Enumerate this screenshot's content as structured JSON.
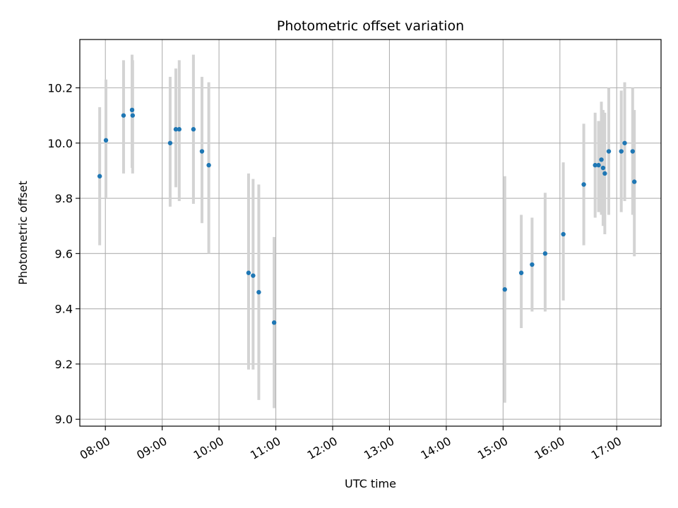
{
  "chart_data": {
    "type": "scatter",
    "title": "Photometric offset variation",
    "xlabel": "UTC time",
    "ylabel": "Photometric offset",
    "x_unit": "UTC time (decimal hours)",
    "xlim": [
      7.55,
      17.78
    ],
    "ylim": [
      8.975,
      10.375
    ],
    "x_ticks": [
      8,
      9,
      10,
      11,
      12,
      13,
      14,
      15,
      16,
      17
    ],
    "x_tick_labels": [
      "08:00",
      "09:00",
      "10:00",
      "11:00",
      "12:00",
      "13:00",
      "14:00",
      "15:00",
      "16:00",
      "17:00"
    ],
    "y_ticks": [
      9.0,
      9.2,
      9.4,
      9.6,
      9.8,
      10.0,
      10.2
    ],
    "y_tick_labels": [
      "9.0",
      "9.2",
      "9.4",
      "9.6",
      "9.8",
      "10.0",
      "10.2"
    ],
    "grid": true,
    "colors": {
      "points": "#1f77b4",
      "errorbars": "#d3d3d3",
      "grid": "#b0b0b0"
    },
    "points": [
      {
        "x": 7.9,
        "y": 9.88,
        "lo": 9.63,
        "hi": 10.13
      },
      {
        "x": 8.01,
        "y": 10.01,
        "lo": 9.8,
        "hi": 10.23
      },
      {
        "x": 8.32,
        "y": 10.1,
        "lo": 9.89,
        "hi": 10.3
      },
      {
        "x": 8.47,
        "y": 10.12,
        "lo": 9.91,
        "hi": 10.32
      },
      {
        "x": 8.48,
        "y": 10.1,
        "lo": 9.89,
        "hi": 10.3
      },
      {
        "x": 9.14,
        "y": 10.0,
        "lo": 9.77,
        "hi": 10.24
      },
      {
        "x": 9.24,
        "y": 10.05,
        "lo": 9.84,
        "hi": 10.27
      },
      {
        "x": 9.3,
        "y": 10.05,
        "lo": 9.79,
        "hi": 10.3
      },
      {
        "x": 9.55,
        "y": 10.05,
        "lo": 9.78,
        "hi": 10.32
      },
      {
        "x": 9.7,
        "y": 9.97,
        "lo": 9.71,
        "hi": 10.24
      },
      {
        "x": 9.82,
        "y": 9.92,
        "lo": 9.6,
        "hi": 10.22
      },
      {
        "x": 10.52,
        "y": 9.53,
        "lo": 9.18,
        "hi": 9.89
      },
      {
        "x": 10.6,
        "y": 9.52,
        "lo": 9.18,
        "hi": 9.87
      },
      {
        "x": 10.7,
        "y": 9.46,
        "lo": 9.07,
        "hi": 9.85
      },
      {
        "x": 10.97,
        "y": 9.35,
        "lo": 9.04,
        "hi": 9.66
      },
      {
        "x": 15.03,
        "y": 9.47,
        "lo": 9.06,
        "hi": 9.88
      },
      {
        "x": 15.32,
        "y": 9.53,
        "lo": 9.33,
        "hi": 9.74
      },
      {
        "x": 15.51,
        "y": 9.56,
        "lo": 9.39,
        "hi": 9.73
      },
      {
        "x": 15.74,
        "y": 9.6,
        "lo": 9.39,
        "hi": 9.82
      },
      {
        "x": 16.06,
        "y": 9.67,
        "lo": 9.43,
        "hi": 9.93
      },
      {
        "x": 16.42,
        "y": 9.85,
        "lo": 9.63,
        "hi": 10.07
      },
      {
        "x": 16.62,
        "y": 9.92,
        "lo": 9.73,
        "hi": 10.11
      },
      {
        "x": 16.68,
        "y": 9.92,
        "lo": 9.75,
        "hi": 10.08
      },
      {
        "x": 16.73,
        "y": 9.94,
        "lo": 9.74,
        "hi": 10.15
      },
      {
        "x": 16.76,
        "y": 9.91,
        "lo": 9.7,
        "hi": 10.12
      },
      {
        "x": 16.79,
        "y": 9.89,
        "lo": 9.67,
        "hi": 10.11
      },
      {
        "x": 16.86,
        "y": 9.97,
        "lo": 9.74,
        "hi": 10.2
      },
      {
        "x": 17.08,
        "y": 9.97,
        "lo": 9.75,
        "hi": 10.19
      },
      {
        "x": 17.14,
        "y": 10.0,
        "lo": 9.79,
        "hi": 10.22
      },
      {
        "x": 17.28,
        "y": 9.97,
        "lo": 9.74,
        "hi": 10.2
      },
      {
        "x": 17.31,
        "y": 9.86,
        "lo": 9.59,
        "hi": 10.12
      }
    ]
  }
}
